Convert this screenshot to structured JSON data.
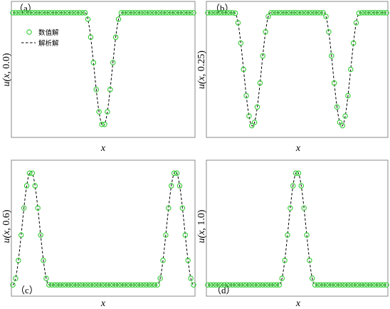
{
  "legend": {
    "numerical_label": "数值解",
    "analytic_label": "解析解"
  },
  "colors": {
    "numerical": "#33cc33",
    "analytic": "#000000",
    "frame": "#888888"
  },
  "chart_data": [
    {
      "id": "a",
      "panel_label": "（a）",
      "type": "line",
      "ylabel_prefix": "u(",
      "ylabel_var": "x",
      "ylabel_suffix": ", 0.0)",
      "xlabel": "x",
      "xlim": [
        0,
        1
      ],
      "ylim": [
        -0.5,
        5.5
      ],
      "legend": "top-left",
      "peaks": [
        {
          "center": 0.5,
          "amplitude": -5,
          "half_width": 0.1
        }
      ],
      "flat": 5,
      "baseline": 0
    },
    {
      "id": "b",
      "panel_label": "（b）",
      "type": "line",
      "ylabel_prefix": "u(",
      "ylabel_var": "x",
      "ylabel_suffix": ", 0.25)",
      "xlabel": "x",
      "xlim": [
        0,
        1
      ],
      "ylim": [
        -0.5,
        5.5
      ],
      "legend": "none",
      "peaks": [
        {
          "center": 0.25,
          "amplitude": -5,
          "half_width": 0.1
        },
        {
          "center": 0.75,
          "amplitude": -5,
          "half_width": 0.1
        }
      ],
      "flat": 5,
      "baseline": 0
    },
    {
      "id": "c",
      "panel_label": "（c）",
      "type": "line",
      "ylabel_prefix": "u(",
      "ylabel_var": "x",
      "ylabel_suffix": ", 0.6)",
      "xlabel": "x",
      "xlim": [
        0,
        1
      ],
      "ylim": [
        -0.5,
        5.5
      ],
      "legend": "none",
      "peaks": [
        {
          "center": 0.1,
          "amplitude": 5,
          "half_width": 0.1
        },
        {
          "center": 0.9,
          "amplitude": 5,
          "half_width": 0.1
        }
      ],
      "flat": 0,
      "baseline": 0
    },
    {
      "id": "d",
      "panel_label": "（d）",
      "type": "line",
      "ylabel_prefix": "u(",
      "ylabel_var": "x",
      "ylabel_suffix": ", 1.0)",
      "xlabel": "x",
      "xlim": [
        0,
        1
      ],
      "ylim": [
        -0.5,
        5.5
      ],
      "legend": "none",
      "peaks": [
        {
          "center": 0.5,
          "amplitude": 5,
          "half_width": 0.1
        }
      ],
      "flat": 0,
      "baseline": 0
    }
  ]
}
